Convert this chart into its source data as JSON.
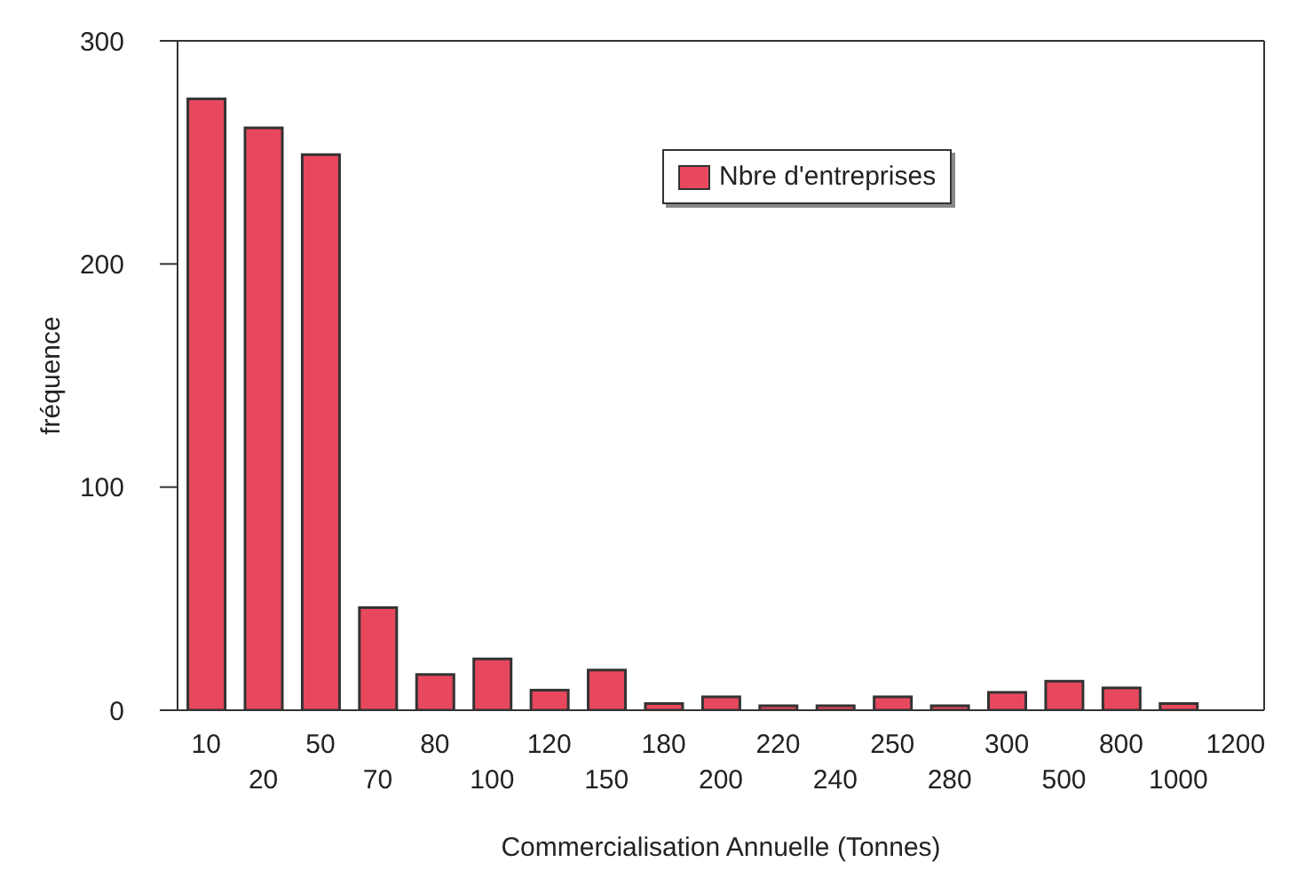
{
  "chart_data": {
    "type": "bar",
    "xlabel": "Commercialisation Annuelle (Tonnes)",
    "ylabel": "fréquence",
    "categories": [
      "10",
      "20",
      "50",
      "70",
      "80",
      "100",
      "120",
      "150",
      "180",
      "200",
      "220",
      "240",
      "250",
      "280",
      "300",
      "500",
      "800",
      "1000",
      "1200"
    ],
    "series": [
      {
        "name": "Nbre d'entreprises",
        "color": "#e8485e",
        "values": [
          274,
          261,
          249,
          46,
          16,
          23,
          9,
          18,
          3,
          6,
          2,
          2,
          6,
          2,
          8,
          13,
          10,
          3,
          0
        ]
      }
    ],
    "ylim": [
      0,
      300
    ],
    "yticks": [
      0,
      100,
      200,
      300
    ],
    "legend": "top"
  }
}
